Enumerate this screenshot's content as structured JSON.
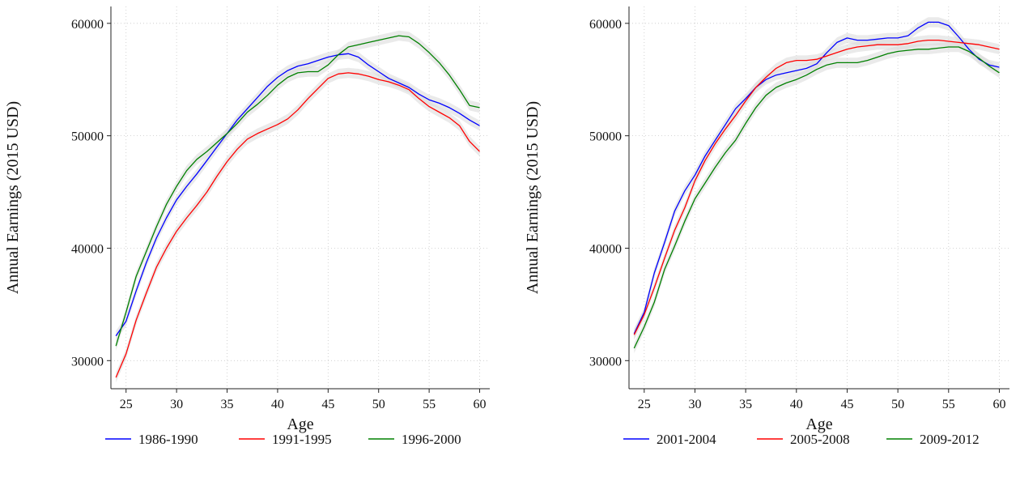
{
  "chart_data": [
    {
      "type": "line",
      "title": "",
      "xlabel": "Age",
      "ylabel": "Annual Earnings (2015 USD)",
      "xlim": [
        23.5,
        61
      ],
      "ylim": [
        27500,
        61500
      ],
      "xticks": [
        25,
        30,
        35,
        40,
        45,
        50,
        55,
        60
      ],
      "yticks": [
        30000,
        40000,
        50000,
        60000
      ],
      "grid": true,
      "legend_position": "bottom",
      "confidence_band": true,
      "series": [
        {
          "name": "1986-1990",
          "color": "#0000ff",
          "x": [
            24,
            25,
            26,
            27,
            28,
            29,
            30,
            31,
            32,
            33,
            34,
            35,
            36,
            37,
            38,
            39,
            40,
            41,
            42,
            43,
            44,
            45,
            46,
            47,
            48,
            49,
            50,
            51,
            52,
            53,
            54,
            55,
            56,
            57,
            58,
            59,
            60
          ],
          "y": [
            32200,
            33500,
            36200,
            38700,
            40900,
            42700,
            44300,
            45500,
            46600,
            47800,
            49000,
            50200,
            51400,
            52400,
            53400,
            54400,
            55200,
            55800,
            56200,
            56400,
            56700,
            57000,
            57200,
            57300,
            57000,
            56300,
            55700,
            55100,
            54700,
            54300,
            53700,
            53200,
            52900,
            52500,
            52000,
            51400,
            50900
          ]
        },
        {
          "name": "1991-1995",
          "color": "#ff0000",
          "x": [
            24,
            25,
            26,
            27,
            28,
            29,
            30,
            31,
            32,
            33,
            34,
            35,
            36,
            37,
            38,
            39,
            40,
            41,
            42,
            43,
            44,
            45,
            46,
            47,
            48,
            49,
            50,
            51,
            52,
            53,
            54,
            55,
            56,
            57,
            58,
            59,
            60
          ],
          "y": [
            28500,
            30600,
            33600,
            36000,
            38300,
            40000,
            41500,
            42700,
            43800,
            45000,
            46400,
            47700,
            48800,
            49700,
            50200,
            50600,
            51000,
            51500,
            52300,
            53300,
            54200,
            55100,
            55500,
            55600,
            55500,
            55300,
            55000,
            54800,
            54500,
            54100,
            53300,
            52600,
            52100,
            51600,
            50900,
            49500,
            48600
          ]
        },
        {
          "name": "1996-2000",
          "color": "#008000",
          "x": [
            24,
            25,
            26,
            27,
            28,
            29,
            30,
            31,
            32,
            33,
            34,
            35,
            36,
            37,
            38,
            39,
            40,
            41,
            42,
            43,
            44,
            45,
            46,
            47,
            48,
            49,
            50,
            51,
            52,
            53,
            54,
            55,
            56,
            57,
            58,
            59,
            60
          ],
          "y": [
            31300,
            34300,
            37500,
            39700,
            41900,
            43900,
            45500,
            46900,
            47900,
            48600,
            49400,
            50200,
            51100,
            52100,
            52800,
            53600,
            54500,
            55200,
            55600,
            55700,
            55700,
            56300,
            57200,
            57900,
            58100,
            58300,
            58500,
            58700,
            58900,
            58800,
            58200,
            57400,
            56500,
            55400,
            54100,
            52700,
            52500
          ]
        }
      ]
    },
    {
      "type": "line",
      "title": "",
      "xlabel": "Age",
      "ylabel": "Annual Earnings (2015 USD)",
      "xlim": [
        23.5,
        61
      ],
      "ylim": [
        27500,
        61500
      ],
      "xticks": [
        25,
        30,
        35,
        40,
        45,
        50,
        55,
        60
      ],
      "yticks": [
        30000,
        40000,
        50000,
        60000
      ],
      "grid": true,
      "legend_position": "bottom",
      "confidence_band": true,
      "series": [
        {
          "name": "2001-2004",
          "color": "#0000ff",
          "x": [
            24,
            25,
            26,
            27,
            28,
            29,
            30,
            31,
            32,
            33,
            34,
            35,
            36,
            37,
            38,
            39,
            40,
            41,
            42,
            43,
            44,
            45,
            46,
            47,
            48,
            49,
            50,
            51,
            52,
            53,
            54,
            55,
            56,
            57,
            58,
            59,
            60
          ],
          "y": [
            32400,
            34300,
            37800,
            40500,
            43300,
            45100,
            46500,
            48200,
            49600,
            51000,
            52400,
            53300,
            54300,
            55000,
            55400,
            55600,
            55800,
            56000,
            56400,
            57400,
            58300,
            58700,
            58500,
            58500,
            58600,
            58700,
            58700,
            58900,
            59600,
            60100,
            60100,
            59800,
            58800,
            57700,
            56800,
            56300,
            56100
          ]
        },
        {
          "name": "2005-2008",
          "color": "#ff0000",
          "x": [
            24,
            25,
            26,
            27,
            28,
            29,
            30,
            31,
            32,
            33,
            34,
            35,
            36,
            37,
            38,
            39,
            40,
            41,
            42,
            43,
            44,
            45,
            46,
            47,
            48,
            49,
            50,
            51,
            52,
            53,
            54,
            55,
            56,
            57,
            58,
            59,
            60
          ],
          "y": [
            32300,
            34100,
            36500,
            39100,
            41600,
            43600,
            46000,
            47800,
            49300,
            50600,
            51800,
            53100,
            54300,
            55200,
            56000,
            56500,
            56700,
            56700,
            56800,
            57100,
            57400,
            57700,
            57900,
            58000,
            58100,
            58100,
            58100,
            58200,
            58400,
            58500,
            58500,
            58400,
            58300,
            58200,
            58100,
            57900,
            57700
          ]
        },
        {
          "name": "2009-2012",
          "color": "#008000",
          "x": [
            24,
            25,
            26,
            27,
            28,
            29,
            30,
            31,
            32,
            33,
            34,
            35,
            36,
            37,
            38,
            39,
            40,
            41,
            42,
            43,
            44,
            45,
            46,
            47,
            48,
            49,
            50,
            51,
            52,
            53,
            54,
            55,
            56,
            57,
            58,
            59,
            60
          ],
          "y": [
            31100,
            33000,
            35200,
            38100,
            40200,
            42400,
            44400,
            45800,
            47200,
            48500,
            49600,
            51100,
            52500,
            53600,
            54300,
            54700,
            55000,
            55400,
            55900,
            56300,
            56500,
            56500,
            56500,
            56700,
            57000,
            57300,
            57500,
            57600,
            57700,
            57700,
            57800,
            57900,
            57900,
            57500,
            56900,
            56200,
            55600
          ]
        }
      ]
    }
  ]
}
